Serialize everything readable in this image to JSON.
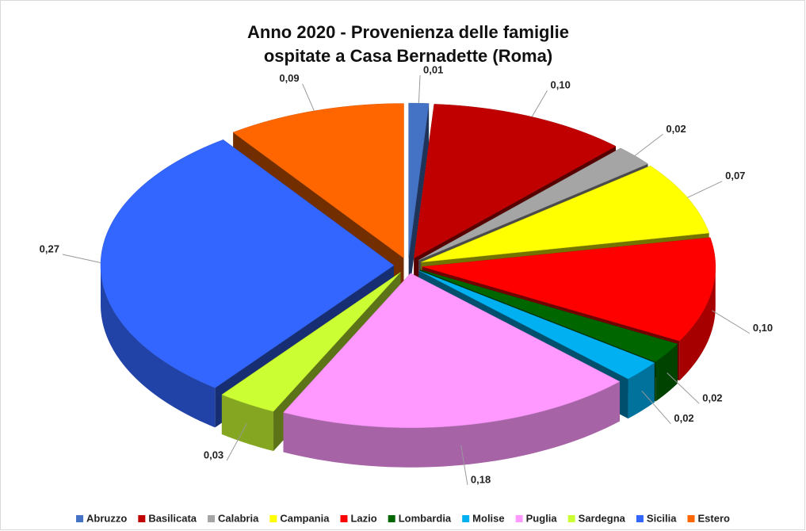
{
  "chart_data": {
    "type": "pie3d",
    "title": [
      "Anno 2020 - Provenienza delle famiglie",
      "ospitate a Casa Bernadette (Roma)"
    ],
    "categories": [
      "Abruzzo",
      "Basilicata",
      "Calabria",
      "Campania",
      "Lazio",
      "Lombardia",
      "Molise",
      "Puglia",
      "Sardegna",
      "Sicilia",
      "Estero"
    ],
    "values": [
      0.01,
      0.1,
      0.02,
      0.07,
      0.1,
      0.02,
      0.02,
      0.18,
      0.03,
      0.27,
      0.09
    ],
    "value_labels": [
      "0,01",
      "0,10",
      "0,02",
      "0,07",
      "0,10",
      "0,02",
      "0,02",
      "0,18",
      "0,03",
      "0,27",
      "0,09"
    ],
    "colors": [
      "#4472c4",
      "#c00000",
      "#a5a5a5",
      "#ffff00",
      "#ff0000",
      "#006600",
      "#00b0f0",
      "#ff99ff",
      "#ccff33",
      "#3366ff",
      "#ff6600"
    ],
    "legend": "bottom"
  }
}
